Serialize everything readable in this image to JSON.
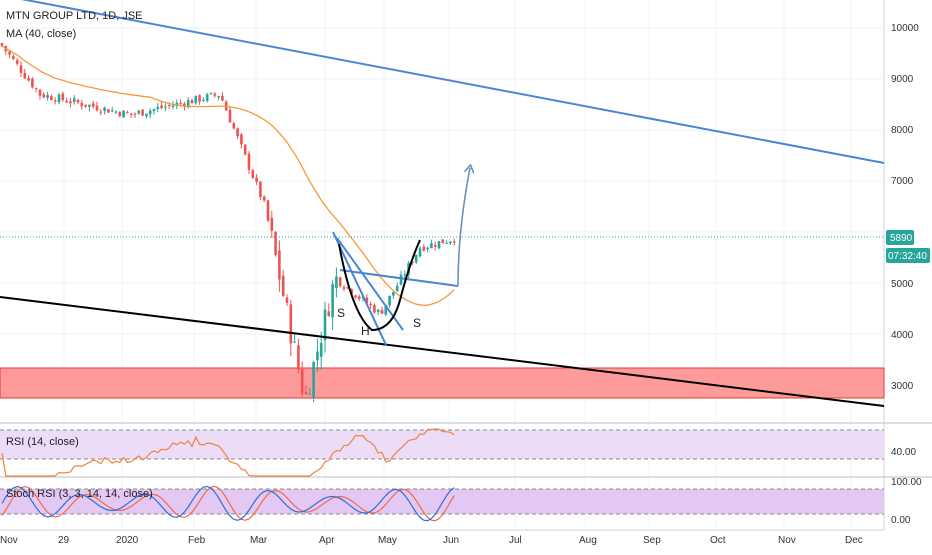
{
  "header": {
    "symbol_line": "MTN GROUP LTD, 1D, JSE",
    "ma_line": "MA (40, close)"
  },
  "main_pane": {
    "price_ticks": [
      "10000",
      "9000",
      "8000",
      "7000",
      "5000",
      "4000",
      "3000"
    ],
    "last_price_label": "5890",
    "countdown_label": "07:32:40",
    "pattern_labels": {
      "left_shoulder": "S",
      "head": "H",
      "right_shoulder": "S"
    }
  },
  "rsi_pane": {
    "title": "RSI (14, close)",
    "tick_label": "40.00"
  },
  "stoch_pane": {
    "title": "Stoch RSI (3, 3, 14, 14, close)",
    "tick_labels": [
      "100.00",
      "0.00"
    ]
  },
  "time_axis": {
    "labels": [
      "Nov",
      "29",
      "2020",
      "Feb",
      "Mar",
      "Apr",
      "May",
      "Jun",
      "Jul",
      "Aug",
      "Sep",
      "Oct",
      "Nov",
      "Dec"
    ]
  },
  "colors": {
    "up": "#26a69a",
    "down": "#ef5350",
    "ma": "#f59a3c",
    "blue_trend": "#4a86d6",
    "black_trend": "#000000",
    "support_zone": "#ff9a9a",
    "rsi_line": "#f0843c",
    "stoch_k": "#2f6fd6",
    "stoch_d": "#ef6a4a",
    "osc_band": "#e8d4f4",
    "label_bg": "#2f7fd0"
  },
  "chart_data": {
    "type": "candlestick",
    "title": "MTN GROUP LTD, 1D, JSE",
    "indicators": [
      "MA (40, close)",
      "RSI (14, close)",
      "Stoch RSI (3, 3, 14, 14, close)"
    ],
    "ylim": [
      2600,
      10600
    ],
    "last_price": 5890,
    "support_zone": [
      2750,
      3300
    ],
    "close_path_approx": [
      {
        "date": "Nov 2019",
        "close": 9700
      },
      {
        "date": "Dec 2019",
        "close": 8700
      },
      {
        "date": "Jan 2020",
        "close": 8300
      },
      {
        "date": "Feb 2020",
        "close": 8700
      },
      {
        "date": "Mar 2020",
        "close": 6500
      },
      {
        "date": "Mar 2020",
        "close": 2700
      },
      {
        "date": "Apr 2020",
        "close": 5100
      },
      {
        "date": "May 2020",
        "close": 4400
      },
      {
        "date": "May 2020",
        "close": 5700
      },
      {
        "date": "Jun 2020",
        "close": 5890
      }
    ],
    "annotations": [
      "S",
      "H",
      "S"
    ],
    "grid": true
  }
}
